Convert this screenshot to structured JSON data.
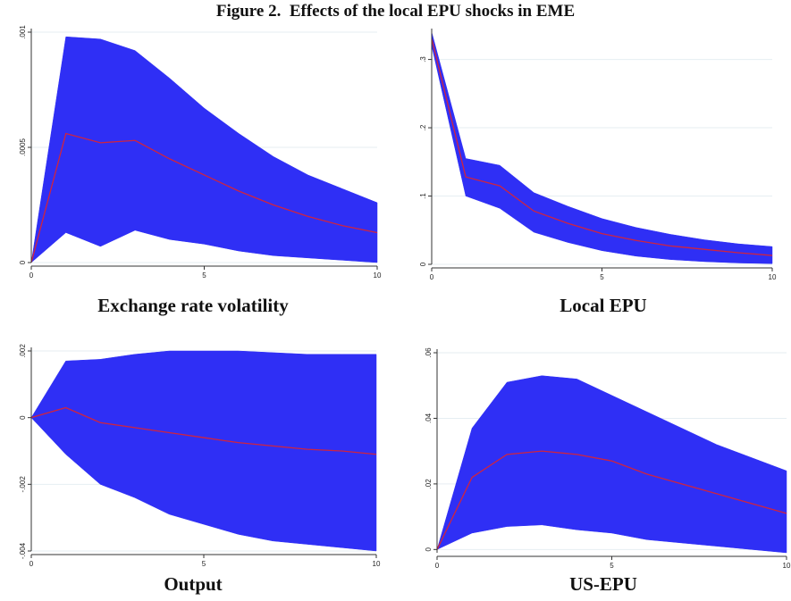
{
  "figure": {
    "title": "Figure 2.  Effects of the local EPU shocks in EME"
  },
  "colors": {
    "band": "#2f2ff5",
    "response_line": "#d0243f",
    "grid": "#e6eef2",
    "axis": "#333333"
  },
  "chart_data": [
    {
      "type": "area",
      "title": "Exchange rate volatility",
      "x": [
        0,
        1,
        2,
        3,
        4,
        5,
        6,
        7,
        8,
        9,
        10
      ],
      "series": [
        {
          "role": "upper_band",
          "values": [
            0,
            0.00098,
            0.00097,
            0.00092,
            0.0008,
            0.00067,
            0.00056,
            0.00046,
            0.00038,
            0.00032,
            0.00026
          ]
        },
        {
          "role": "response",
          "values": [
            0,
            0.00056,
            0.00052,
            0.00053,
            0.00045,
            0.00038,
            0.00031,
            0.00025,
            0.0002,
            0.00016,
            0.00013
          ]
        },
        {
          "role": "lower_band",
          "values": [
            0,
            0.00013,
            7e-05,
            0.00014,
            0.0001,
            8e-05,
            5e-05,
            3e-05,
            2e-05,
            1e-05,
            0.0
          ]
        }
      ],
      "xlim": [
        0,
        10
      ],
      "ylim": [
        0,
        0.001
      ],
      "xticks": [
        0,
        5,
        10
      ],
      "xtick_labels": [
        "0",
        "5",
        "10"
      ],
      "yticks": [
        0,
        0.0005,
        0.001
      ],
      "ytick_labels": [
        "0",
        ".0005",
        ".001"
      ],
      "grid": true,
      "legend": "none"
    },
    {
      "type": "area",
      "title": "Local EPU",
      "x": [
        0,
        1,
        2,
        3,
        4,
        5,
        6,
        7,
        8,
        9,
        10
      ],
      "series": [
        {
          "role": "upper_band",
          "values": [
            0.34,
            0.155,
            0.145,
            0.105,
            0.085,
            0.067,
            0.054,
            0.044,
            0.036,
            0.03,
            0.026
          ]
        },
        {
          "role": "response",
          "values": [
            0.33,
            0.128,
            0.115,
            0.078,
            0.06,
            0.045,
            0.035,
            0.027,
            0.022,
            0.017,
            0.013
          ]
        },
        {
          "role": "lower_band",
          "values": [
            0.32,
            0.1,
            0.082,
            0.047,
            0.032,
            0.02,
            0.012,
            0.007,
            0.004,
            0.002,
            0.001
          ]
        }
      ],
      "xlim": [
        0,
        10
      ],
      "ylim": [
        0,
        0.34
      ],
      "xticks": [
        0,
        5,
        10
      ],
      "xtick_labels": [
        "0",
        "5",
        "10"
      ],
      "yticks": [
        0,
        0.1,
        0.2,
        0.3
      ],
      "ytick_labels": [
        "0",
        ".1",
        ".2",
        ".3"
      ],
      "grid": true,
      "legend": "none"
    },
    {
      "type": "area",
      "title": "Output",
      "x": [
        0,
        1,
        2,
        3,
        4,
        5,
        6,
        7,
        8,
        9,
        10
      ],
      "series": [
        {
          "role": "upper_band",
          "values": [
            0,
            0.0017,
            0.00175,
            0.0019,
            0.002,
            0.002,
            0.002,
            0.00195,
            0.0019,
            0.0019,
            0.0019
          ]
        },
        {
          "role": "response",
          "values": [
            0,
            0.0003,
            -0.00015,
            -0.0003,
            -0.00045,
            -0.0006,
            -0.00075,
            -0.00085,
            -0.00095,
            -0.001,
            -0.0011
          ]
        },
        {
          "role": "lower_band",
          "values": [
            0,
            -0.0011,
            -0.002,
            -0.0024,
            -0.0029,
            -0.0032,
            -0.0035,
            -0.0037,
            -0.0038,
            -0.0039,
            -0.004
          ]
        }
      ],
      "xlim": [
        0,
        10
      ],
      "ylim": [
        -0.004,
        0.002
      ],
      "xticks": [
        0,
        5,
        10
      ],
      "xtick_labels": [
        "0",
        "5",
        "10"
      ],
      "yticks": [
        -0.004,
        -0.002,
        0,
        0.002
      ],
      "ytick_labels": [
        "-.004",
        "-.002",
        "0",
        ".002"
      ],
      "grid": true,
      "legend": "none"
    },
    {
      "type": "area",
      "title": "US-EPU",
      "x": [
        0,
        1,
        2,
        3,
        4,
        5,
        6,
        7,
        8,
        9,
        10
      ],
      "series": [
        {
          "role": "upper_band",
          "values": [
            0,
            0.037,
            0.051,
            0.053,
            0.052,
            0.047,
            0.042,
            0.037,
            0.032,
            0.028,
            0.024
          ]
        },
        {
          "role": "response",
          "values": [
            0,
            0.022,
            0.029,
            0.03,
            0.029,
            0.027,
            0.023,
            0.02,
            0.017,
            0.014,
            0.011
          ]
        },
        {
          "role": "lower_band",
          "values": [
            0,
            0.005,
            0.007,
            0.0075,
            0.006,
            0.005,
            0.003,
            0.002,
            0.001,
            0.0,
            -0.001
          ]
        }
      ],
      "xlim": [
        0,
        10
      ],
      "ylim": [
        -0.001,
        0.06
      ],
      "xticks": [
        0,
        5,
        10
      ],
      "xtick_labels": [
        "0",
        "5",
        "10"
      ],
      "yticks": [
        0,
        0.02,
        0.04,
        0.06
      ],
      "ytick_labels": [
        "0",
        ".02",
        ".04",
        ".06"
      ],
      "grid": true,
      "legend": "none"
    }
  ]
}
